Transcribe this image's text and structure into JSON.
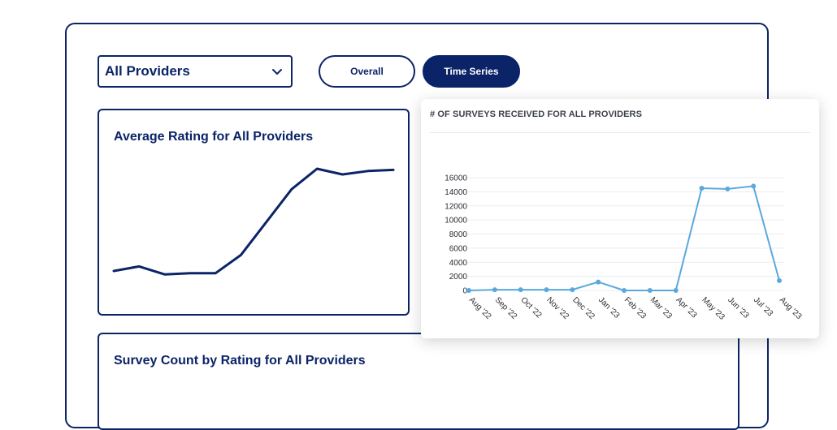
{
  "filter": {
    "selected": "All Providers"
  },
  "toggle": {
    "overall_label": "Overall",
    "timeseries_label": "Time Series",
    "active": "Time Series"
  },
  "colors": {
    "navy": "#0b2468",
    "chart_line": "#5aa9dc"
  },
  "avg_card": {
    "title": "Average Rating for All Providers"
  },
  "count_card": {
    "title": "Survey Count by Rating for All Providers"
  },
  "survey_chart": {
    "title": "# OF SURVEYS RECEIVED FOR ALL PROVIDERS"
  },
  "chart_data": [
    {
      "type": "line",
      "title": "# OF SURVEYS RECEIVED FOR ALL PROVIDERS",
      "xlabel": "",
      "ylabel": "",
      "categories": [
        "Aug '22",
        "Sep '22",
        "Oct '22",
        "Nov '22",
        "Dec '22",
        "Jan '23",
        "Feb '23",
        "Mar '23",
        "Apr '23",
        "May '23",
        "Jun '23",
        "Jul '23",
        "Aug '23"
      ],
      "values": [
        0,
        100,
        100,
        100,
        100,
        1200,
        0,
        0,
        0,
        14500,
        14400,
        14800,
        1400
      ],
      "ylim": [
        0,
        16000
      ],
      "yticks": [
        0,
        2000,
        4000,
        6000,
        8000,
        10000,
        12000,
        14000,
        16000
      ],
      "grid": true,
      "markers": true
    },
    {
      "type": "line",
      "title": "Average Rating for All Providers",
      "xlabel": "",
      "ylabel": "",
      "values": [
        0.1,
        0.14,
        0.07,
        0.08,
        0.08,
        0.24,
        0.53,
        0.82,
        1.0,
        0.95,
        0.98,
        0.99
      ],
      "axes_shown": false
    }
  ]
}
